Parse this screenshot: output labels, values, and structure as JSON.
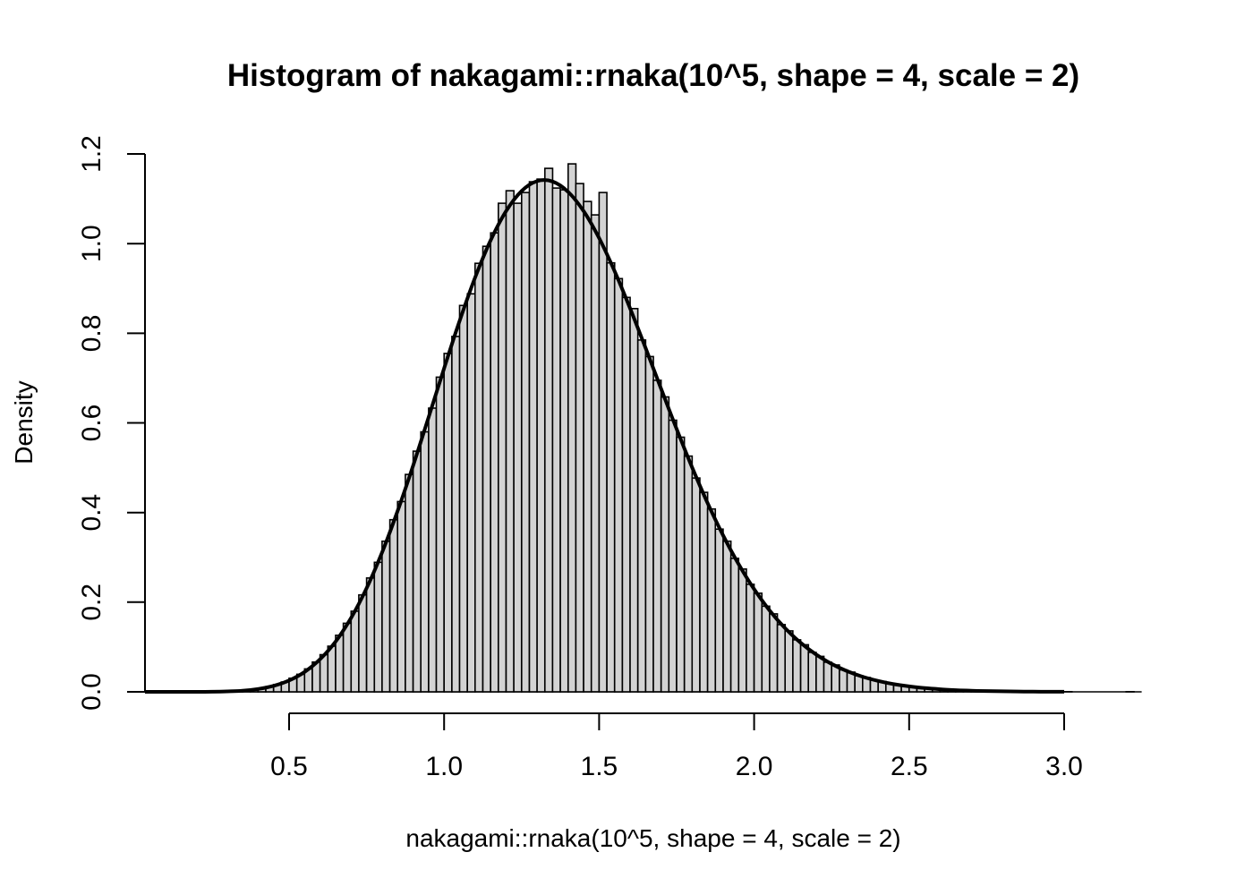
{
  "title": "Histogram of nakagami::rnaka(10^5, shape = 4, scale = 2)",
  "x_axis": {
    "label": "nakagami::rnaka(10^5, shape = 4, scale = 2)",
    "ticks": [
      0.5,
      1.0,
      1.5,
      2.0,
      2.5,
      3.0
    ],
    "tick_labels": [
      "0.5",
      "1.0",
      "1.5",
      "2.0",
      "2.5",
      "3.0"
    ]
  },
  "y_axis": {
    "label": "Density",
    "ticks": [
      0.0,
      0.2,
      0.4,
      0.6,
      0.8,
      1.0,
      1.2
    ],
    "tick_labels": [
      "0.0",
      "0.2",
      "0.4",
      "0.6",
      "0.8",
      "1.0",
      "1.2"
    ]
  },
  "colors": {
    "background": "#ffffff",
    "bar_fill": "#d3d3d3",
    "bar_border": "#000000",
    "curve": "#000000",
    "axis": "#000000",
    "text": "#000000"
  },
  "chart_data": {
    "type": "bar",
    "subtype": "histogram-with-density-curve",
    "title": "Histogram of nakagami::rnaka(10^5, shape = 4, scale = 2)",
    "xlabel": "nakagami::rnaka(10^5, shape = 4, scale = 2)",
    "ylabel": "Density",
    "x_range": [
      0.035,
      3.25
    ],
    "y_range": [
      0.0,
      1.2
    ],
    "grid": false,
    "legend": "none",
    "bin_start": 0.275,
    "bin_width": 0.025,
    "bin_heights": [
      0.0008,
      0.0012,
      0.0024,
      0.0036,
      0.0052,
      0.008,
      0.0116,
      0.0164,
      0.022,
      0.0304,
      0.0392,
      0.0512,
      0.0664,
      0.0828,
      0.1018,
      0.1262,
      0.153,
      0.18,
      0.2162,
      0.254,
      0.289,
      0.336,
      0.384,
      0.4245,
      0.485,
      0.537,
      0.58,
      0.633,
      0.702,
      0.755,
      0.793,
      0.862,
      0.888,
      0.956,
      0.994,
      1.024,
      1.09,
      1.118,
      1.09,
      1.114,
      1.138,
      1.144,
      1.168,
      1.124,
      1.12,
      1.178,
      1.134,
      1.094,
      1.064,
      1.114,
      0.957,
      0.922,
      0.88,
      0.855,
      0.785,
      0.748,
      0.695,
      0.658,
      0.606,
      0.568,
      0.526,
      0.477,
      0.445,
      0.408,
      0.363,
      0.336,
      0.298,
      0.274,
      0.24,
      0.22,
      0.191,
      0.174,
      0.15,
      0.136,
      0.116,
      0.105,
      0.088,
      0.079,
      0.066,
      0.06,
      0.049,
      0.044,
      0.036,
      0.032,
      0.026,
      0.0232,
      0.0188,
      0.0164,
      0.0132,
      0.0112,
      0.0096,
      0.0076,
      0.0064,
      0.0052,
      0.0044,
      0.0036,
      0.0028,
      0.0024,
      0.002,
      0.0016,
      0.0012,
      0.0008,
      0.0008,
      0.0008,
      0.0004,
      0.0004,
      0.0004,
      0.0004,
      0.0,
      0.0004,
      0.0,
      0.0,
      0.0,
      0.0,
      0.0,
      0.0,
      0.0,
      0.0004
    ],
    "baseline_extent": [
      0.275,
      3.25
    ],
    "density_curve": {
      "x_start": 0.0,
      "x_step": 0.05,
      "y": [
        0.0,
        0.0,
        0.0,
        0.0,
        3e-05,
        0.00029,
        0.00097,
        0.00268,
        0.00635,
        0.01329,
        0.02527,
        0.04435,
        0.07265,
        0.11229,
        0.16487,
        0.23115,
        0.31095,
        0.40307,
        0.50484,
        0.6126,
        0.72173,
        0.82738,
        0.92418,
        1.00734,
        1.07276,
        1.11738,
        1.13943,
        1.1385,
        1.11548,
        1.07243,
        1.01231,
        0.93872,
        0.85556,
        0.76674,
        0.67596,
        0.58643,
        0.50086,
        0.42116,
        0.34885,
        0.28472,
        0.22905,
        0.18156,
        0.14194,
        0.1094,
        0.08317,
        0.06238,
        0.04616,
        0.0337,
        0.0243,
        0.01727,
        0.01213,
        0.00841,
        0.00576,
        0.00389,
        0.0026,
        0.00171,
        0.00111,
        0.00072,
        0.00046,
        0.00029,
        0.00018
      ]
    }
  }
}
